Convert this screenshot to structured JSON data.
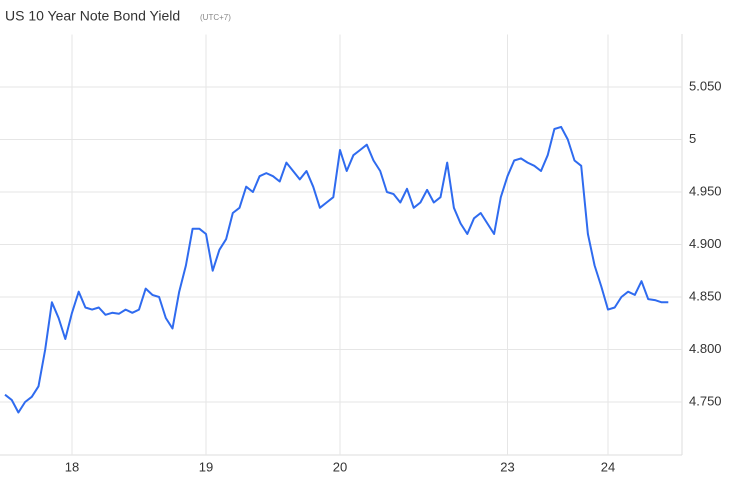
{
  "chart_data": {
    "type": "line",
    "title": "US 10 Year Note Bond Yield",
    "subtitle": "(UTC+7)",
    "categories": [
      null,
      null,
      null,
      null,
      null,
      null,
      null,
      null,
      null,
      null,
      "18",
      null,
      null,
      null,
      null,
      null,
      null,
      null,
      null,
      null,
      null,
      null,
      null,
      null,
      null,
      null,
      null,
      null,
      null,
      null,
      "19",
      null,
      null,
      null,
      null,
      null,
      null,
      null,
      null,
      null,
      null,
      null,
      null,
      null,
      null,
      null,
      null,
      null,
      null,
      null,
      "20",
      null,
      null,
      null,
      null,
      null,
      null,
      null,
      null,
      null,
      null,
      null,
      null,
      null,
      null,
      null,
      null,
      null,
      null,
      null,
      null,
      null,
      null,
      null,
      null,
      "23",
      null,
      null,
      null,
      null,
      null,
      null,
      null,
      null,
      null,
      null,
      null,
      null,
      null,
      null,
      "24",
      null,
      null,
      null,
      null,
      null,
      null,
      null,
      null,
      null
    ],
    "values": [
      4.757,
      4.752,
      4.74,
      4.75,
      4.755,
      4.765,
      4.8,
      4.845,
      4.83,
      4.81,
      4.835,
      4.855,
      4.84,
      4.838,
      4.84,
      4.833,
      4.835,
      4.834,
      4.838,
      4.835,
      4.838,
      4.858,
      4.852,
      4.85,
      4.83,
      4.82,
      4.855,
      4.88,
      4.915,
      4.915,
      4.91,
      4.875,
      4.895,
      4.905,
      4.93,
      4.935,
      4.955,
      4.95,
      4.965,
      4.968,
      4.965,
      4.96,
      4.978,
      4.97,
      4.962,
      4.97,
      4.955,
      4.935,
      4.94,
      4.945,
      4.99,
      4.97,
      4.985,
      4.99,
      4.995,
      4.98,
      4.97,
      4.95,
      4.948,
      4.94,
      4.953,
      4.935,
      4.94,
      4.952,
      4.94,
      4.945,
      4.978,
      4.935,
      4.92,
      4.91,
      4.925,
      4.93,
      4.92,
      4.91,
      4.945,
      4.965,
      4.98,
      4.982,
      4.978,
      4.975,
      4.97,
      4.985,
      5.01,
      5.012,
      5.0,
      4.98,
      4.975,
      4.91,
      4.88,
      4.86,
      4.838,
      4.84,
      4.85,
      4.855,
      4.852,
      4.865,
      4.848,
      4.847,
      4.845,
      4.845
    ],
    "color": "#2f6bef",
    "ylim": [
      4.7,
      5.1
    ],
    "yticks": [
      {
        "value": 4.75,
        "label": "4.750"
      },
      {
        "value": 4.8,
        "label": "4.800"
      },
      {
        "value": 4.85,
        "label": "4.850"
      },
      {
        "value": 4.9,
        "label": "4.900"
      },
      {
        "value": 4.95,
        "label": "4.950"
      },
      5,
      {
        "value": 5.05,
        "label": "5.050"
      }
    ],
    "grid": true
  }
}
